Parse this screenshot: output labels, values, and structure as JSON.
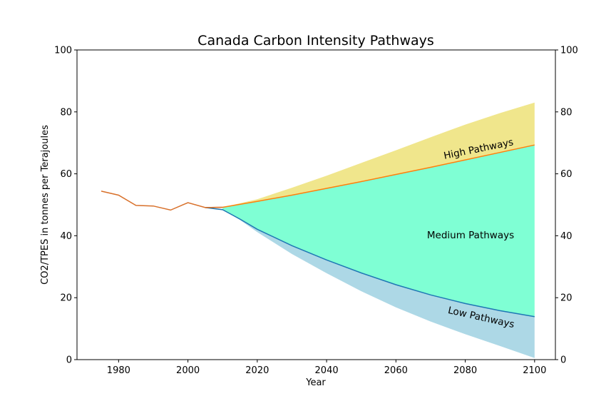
{
  "chart_data": {
    "type": "area",
    "title": "Canada Carbon Intensity Pathways",
    "xlabel": "Year",
    "ylabel": "CO2/TPES in tonnes per Terajoules",
    "xlim": [
      1968,
      2106
    ],
    "ylim": [
      0,
      100
    ],
    "x_ticks": [
      1980,
      2000,
      2020,
      2040,
      2060,
      2080,
      2100
    ],
    "y_ticks": [
      0,
      20,
      40,
      60,
      80,
      100
    ],
    "right_y_ticks": [
      0,
      20,
      40,
      60,
      80,
      100
    ],
    "grid": false,
    "historical": {
      "x": [
        1975,
        1980,
        1985,
        1990,
        1995,
        2000,
        2005,
        2010
      ],
      "y": [
        54.4,
        53.1,
        49.8,
        49.6,
        48.3,
        50.7,
        49.1,
        49.2
      ]
    },
    "high_line": {
      "x": [
        2005,
        2010,
        2020,
        2030,
        2040,
        2050,
        2060,
        2070,
        2080,
        2090,
        2100
      ],
      "y": [
        49.1,
        49.2,
        51.1,
        53.1,
        55.3,
        57.5,
        59.8,
        62.1,
        64.5,
        66.9,
        69.3
      ]
    },
    "high_upper": {
      "x": [
        2010,
        2020,
        2030,
        2040,
        2050,
        2060,
        2070,
        2080,
        2090,
        2100
      ],
      "y": [
        49.2,
        51.8,
        55.5,
        59.4,
        63.5,
        67.6,
        71.8,
        75.9,
        79.6,
        83.0
      ]
    },
    "low_line": {
      "x": [
        2005,
        2010,
        2015,
        2020,
        2030,
        2040,
        2050,
        2060,
        2070,
        2080,
        2090,
        2100
      ],
      "y": [
        49.1,
        48.4,
        45.4,
        42.1,
        36.8,
        32.2,
        28.0,
        24.2,
        20.9,
        18.1,
        15.8,
        13.9
      ]
    },
    "low_lower": {
      "x": [
        2010,
        2015,
        2020,
        2030,
        2040,
        2050,
        2060,
        2070,
        2080,
        2090,
        2100
      ],
      "y": [
        48.4,
        45.1,
        41.2,
        34.1,
        27.9,
        22.1,
        16.9,
        12.3,
        8.2,
        4.4,
        0.5
      ]
    },
    "colors": {
      "high_fill": "#f0e68c",
      "medium_fill": "#7fffd4",
      "low_fill": "#add8e6",
      "high_line": "#ff7f0e",
      "low_line": "#1f77b4",
      "historical_line": "#d8702a"
    },
    "annotations": {
      "high": "High Pathways",
      "medium": "Medium Pathways",
      "low": "Low Pathways"
    }
  }
}
